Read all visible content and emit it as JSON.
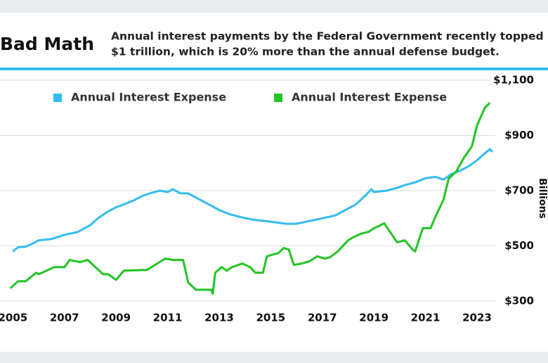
{
  "chart_data": {
    "type": "line",
    "title": "Bad Math",
    "subtitle": [
      "Annual interest payments by the Federal Government recently topped",
      "$1 trillion, which is 20% more than the annual defense budget."
    ],
    "y_label": "Billions",
    "series": [
      {
        "name": "Annual Interest Expense",
        "color": "#33bdf0",
        "x": [
          2005.0,
          2005.2,
          2005.5,
          2005.8,
          2006.0,
          2006.5,
          2007.0,
          2007.5,
          2008.0,
          2008.3,
          2008.7,
          2009.0,
          2009.3,
          2009.7,
          2010.0,
          2010.3,
          2010.7,
          2011.0,
          2011.2,
          2011.5,
          2011.8,
          2012.2,
          2012.6,
          2013.0,
          2013.4,
          2013.8,
          2014.3,
          2014.8,
          2015.2,
          2015.6,
          2016.0,
          2016.5,
          2017.0,
          2017.5,
          2017.9,
          2018.3,
          2018.7,
          2018.9,
          2019.0,
          2019.5,
          2019.9,
          2020.2,
          2020.6,
          2021.0,
          2021.4,
          2021.7,
          2022.0,
          2022.3,
          2022.7,
          2023.0,
          2023.3,
          2023.5,
          2023.6
        ],
        "values": [
          480,
          495,
          497,
          510,
          520,
          525,
          540,
          550,
          575,
          600,
          625,
          640,
          650,
          665,
          680,
          690,
          700,
          695,
          705,
          690,
          690,
          670,
          650,
          630,
          615,
          605,
          595,
          590,
          585,
          580,
          580,
          590,
          600,
          610,
          630,
          650,
          685,
          705,
          695,
          700,
          710,
          720,
          730,
          745,
          750,
          740,
          760,
          770,
          790,
          810,
          835,
          850,
          840
        ]
      },
      {
        "name": "Annual Interest Expense",
        "color": "#22c522",
        "x": [
          2004.9,
          2005.2,
          2005.5,
          2005.9,
          2006.0,
          2006.6,
          2007.0,
          2007.2,
          2007.6,
          2007.9,
          2008.2,
          2008.5,
          2008.7,
          2009.0,
          2009.3,
          2010.2,
          2010.6,
          2010.9,
          2011.2,
          2011.6,
          2011.8,
          2012.1,
          2012.7,
          2012.75,
          2012.85,
          2013.1,
          2013.3,
          2013.5,
          2013.9,
          2014.2,
          2014.4,
          2014.7,
          2014.85,
          2015.1,
          2015.3,
          2015.5,
          2015.7,
          2015.9,
          2016.2,
          2016.5,
          2016.8,
          2017.1,
          2017.3,
          2017.6,
          2018.0,
          2018.2,
          2018.5,
          2018.8,
          2019.0,
          2019.2,
          2019.4,
          2019.9,
          2020.2,
          2020.5,
          2020.6,
          2020.9,
          2021.2,
          2021.4,
          2021.7,
          2021.9,
          2022.2,
          2022.5,
          2022.8,
          2023.0,
          2023.3,
          2023.5
        ],
        "values": [
          346,
          372,
          372,
          403,
          397,
          423,
          423,
          449,
          441,
          449,
          423,
          397,
          397,
          377,
          410,
          413,
          436,
          454,
          449,
          449,
          367,
          341,
          341,
          326,
          403,
          423,
          410,
          423,
          436,
          423,
          403,
          403,
          462,
          469,
          474,
          492,
          487,
          431,
          436,
          444,
          462,
          454,
          459,
          480,
          520,
          531,
          544,
          551,
          564,
          572,
          582,
          513,
          520,
          487,
          480,
          564,
          564,
          608,
          667,
          743,
          770,
          820,
          860,
          936,
          1000,
          1018
        ]
      }
    ],
    "xlim": [
      2004.5,
      2024.2
    ],
    "xticks": [
      2005,
      2007,
      2009,
      2011,
      2013,
      2015,
      2017,
      2019,
      2021,
      2023
    ],
    "ylim": [
      300,
      1100
    ],
    "yticks": [
      {
        "value": 300,
        "label": "$300"
      },
      {
        "value": 500,
        "label": "$500"
      },
      {
        "value": 700,
        "label": "$700"
      },
      {
        "value": 900,
        "label": "$900"
      },
      {
        "value": 1100,
        "label": "$1,100"
      }
    ],
    "grid": true
  }
}
